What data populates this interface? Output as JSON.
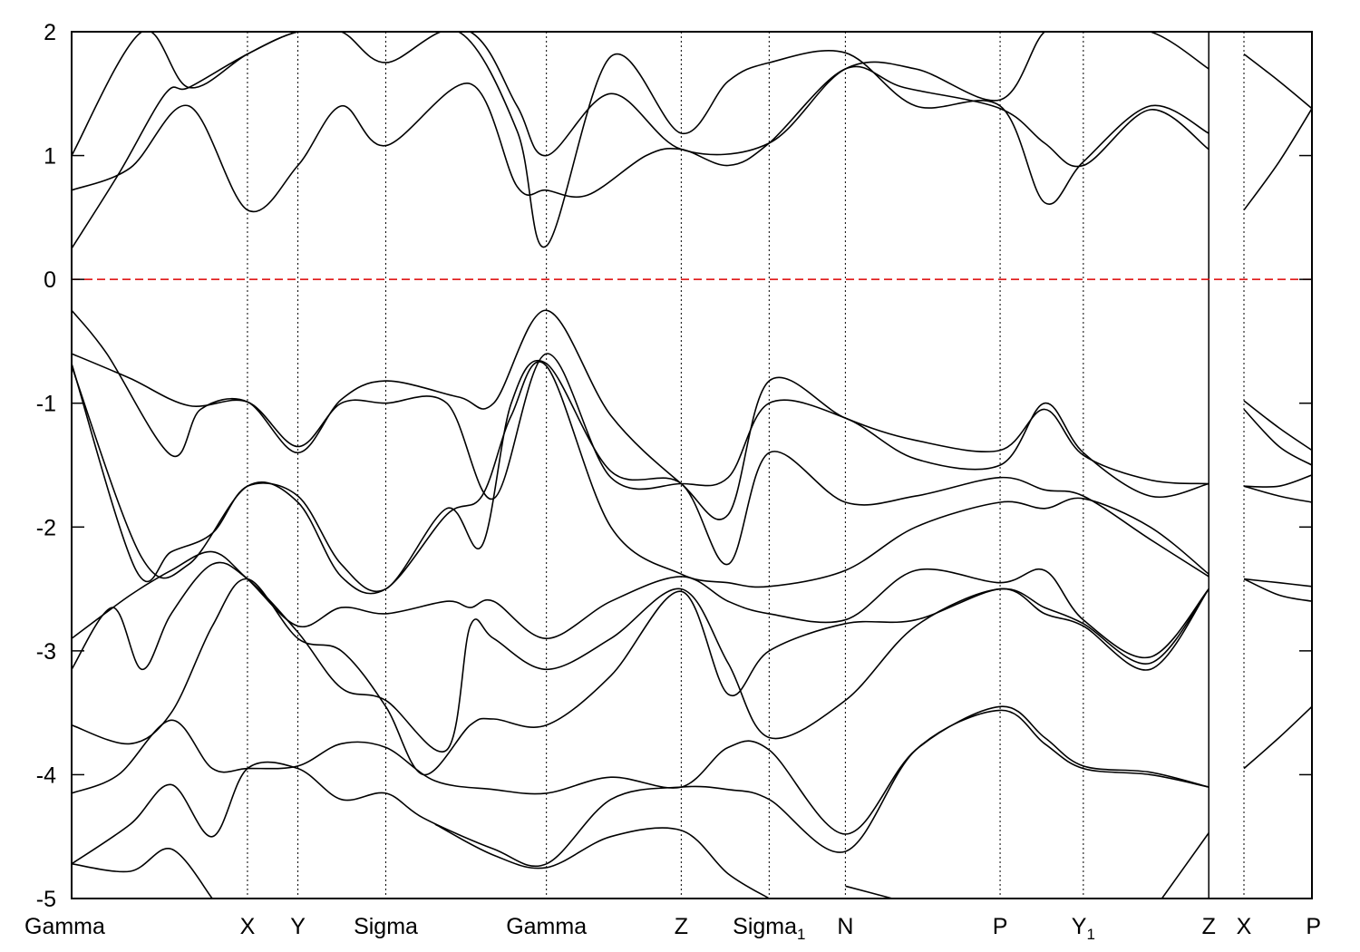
{
  "chart_data": {
    "type": "line",
    "title": "",
    "xlabel": "",
    "ylabel": "",
    "ylim": [
      -5,
      2
    ],
    "yticks": [
      -5,
      -4,
      -3,
      -2,
      -1,
      0,
      1,
      2
    ],
    "grid": "vertical dotted lines at high-symmetry points",
    "legend": "none",
    "fermi_level": {
      "y": 0,
      "color": "#dd0000",
      "style": "dashed"
    },
    "high_symmetry_points": [
      {
        "x": 0.0,
        "label": "Gamma",
        "sub": ""
      },
      {
        "x": 1.5,
        "label": "X",
        "sub": ""
      },
      {
        "x": 1.93,
        "label": "Y",
        "sub": ""
      },
      {
        "x": 2.68,
        "label": "Sigma",
        "sub": ""
      },
      {
        "x": 4.05,
        "label": "Gamma",
        "sub": ""
      },
      {
        "x": 5.2,
        "label": "Z",
        "sub": ""
      },
      {
        "x": 5.95,
        "label": "Sigma",
        "sub": "1"
      },
      {
        "x": 6.6,
        "label": "N",
        "sub": ""
      },
      {
        "x": 7.92,
        "label": "P",
        "sub": ""
      },
      {
        "x": 8.63,
        "label": "Y",
        "sub": "1"
      },
      {
        "x": 9.7,
        "label": "Z",
        "sub": ""
      },
      {
        "x": 10.0,
        "label": "X",
        "sub": ""
      },
      {
        "x": 10.58,
        "label": "P",
        "sub": ""
      }
    ],
    "xlim": [
      0,
      10.58
    ],
    "series": [
      {
        "name": "",
        "x": [
          0,
          0.4,
          0.8,
          1.0,
          1.5,
          1.93,
          2.3,
          2.68,
          3.4,
          3.8,
          4.05,
          4.6,
          5.2,
          5.95,
          6.6,
          7.2,
          7.92,
          8.3,
          8.63,
          9.2,
          9.7
        ],
        "values": [
          0.25,
          0.85,
          1.5,
          1.55,
          1.82,
          2.0,
          2.0,
          2.0,
          2.0,
          1.4,
          1.0,
          1.5,
          1.05,
          1.1,
          1.7,
          1.7,
          1.45,
          2.0,
          2.0,
          2.0,
          1.7
        ]
      },
      {
        "name": "",
        "x": [
          0,
          0.5,
          1.0,
          1.5,
          1.93,
          2.3,
          2.68,
          3.4,
          3.8,
          4.05,
          4.4,
          4.9,
          5.2,
          5.6,
          5.95,
          6.6,
          7.1,
          7.92,
          8.3,
          8.63,
          9.2,
          9.7
        ],
        "values": [
          0.72,
          0.9,
          1.4,
          0.56,
          0.92,
          1.4,
          1.08,
          1.58,
          0.75,
          0.72,
          0.68,
          1.0,
          1.05,
          0.92,
          1.1,
          1.7,
          1.55,
          1.38,
          1.1,
          0.92,
          1.37,
          1.05
        ]
      },
      {
        "name": "",
        "x": [
          0,
          0.6,
          1.0,
          1.5,
          1.93,
          2.3,
          2.68,
          3.3,
          3.8,
          4.05,
          4.6,
          5.2,
          5.6,
          5.95,
          6.6,
          7.2,
          7.92,
          8.3,
          8.63,
          9.2,
          9.7
        ],
        "values": [
          1.0,
          2.0,
          1.55,
          1.82,
          2.0,
          2.0,
          1.75,
          2.0,
          1.2,
          0.27,
          1.8,
          1.18,
          1.6,
          1.75,
          1.83,
          1.4,
          1.4,
          0.62,
          0.95,
          1.4,
          1.18
        ]
      },
      {
        "name": "",
        "x": [
          10.0,
          10.3,
          10.58
        ],
        "values": [
          1.82,
          1.6,
          1.38
        ]
      },
      {
        "name": "",
        "x": [
          10.0,
          10.3,
          10.58
        ],
        "values": [
          0.56,
          0.95,
          1.38
        ]
      },
      {
        "name": "",
        "x": [
          0,
          0.3,
          0.85,
          1.1,
          1.5,
          1.93,
          2.3,
          2.68,
          3.3,
          3.6,
          4.05,
          4.6,
          5.2,
          5.6,
          5.95,
          6.6,
          7.2,
          7.92,
          8.3,
          8.63,
          9.2,
          9.7
        ],
        "values": [
          -0.25,
          -0.6,
          -1.42,
          -1.05,
          -0.99,
          -1.4,
          -0.97,
          -0.82,
          -0.95,
          -1.0,
          -0.25,
          -1.1,
          -1.65,
          -1.9,
          -0.82,
          -1.12,
          -1.3,
          -1.38,
          -1.05,
          -1.42,
          -1.62,
          -1.65
        ]
      },
      {
        "name": "",
        "x": [
          0,
          0.5,
          1.0,
          1.5,
          1.93,
          2.3,
          2.68,
          3.2,
          3.6,
          4.05,
          4.6,
          5.2,
          5.6,
          5.95,
          6.6,
          7.2,
          7.92,
          8.3,
          8.63,
          9.2,
          9.7
        ],
        "values": [
          -0.6,
          -0.8,
          -1.02,
          -0.99,
          -1.35,
          -1.0,
          -1.0,
          -1.0,
          -1.77,
          -0.6,
          -1.6,
          -1.65,
          -1.6,
          -1.0,
          -1.12,
          -1.45,
          -1.5,
          -1.0,
          -1.4,
          -1.75,
          -1.65
        ]
      },
      {
        "name": "",
        "x": [
          0,
          0.55,
          0.85,
          1.2,
          1.5,
          1.93,
          2.3,
          2.68,
          3.2,
          3.5,
          3.75,
          4.05,
          4.6,
          5.2,
          5.6,
          5.95,
          6.6,
          7.2,
          7.92,
          8.3,
          8.63,
          9.2,
          9.7
        ],
        "values": [
          -0.68,
          -2.35,
          -2.2,
          -2.05,
          -1.67,
          -1.75,
          -2.3,
          -2.5,
          -1.85,
          -2.15,
          -1.0,
          -0.68,
          -1.55,
          -1.65,
          -2.3,
          -1.4,
          -1.8,
          -1.75,
          -1.6,
          -1.7,
          -1.75,
          -2.1,
          -2.4
        ]
      },
      {
        "name": "",
        "x": [
          0,
          0.6,
          1.0,
          1.5,
          1.93,
          2.3,
          2.68,
          3.2,
          3.5,
          3.75,
          4.05,
          4.6,
          5.2,
          5.6,
          5.95,
          6.6,
          7.2,
          7.92,
          8.3,
          8.63,
          9.2,
          9.7
        ],
        "values": [
          -0.7,
          -2.25,
          -2.3,
          -1.67,
          -1.8,
          -2.4,
          -2.5,
          -1.9,
          -1.75,
          -1.1,
          -0.7,
          -2.0,
          -2.38,
          -2.45,
          -2.48,
          -2.35,
          -2.0,
          -1.8,
          -1.85,
          -1.77,
          -2.0,
          -2.38
        ]
      },
      {
        "name": "",
        "x": [
          0,
          0.5,
          0.85,
          1.2,
          1.5,
          1.93,
          2.3,
          2.68,
          3.2,
          3.4,
          3.6,
          4.05,
          4.6,
          5.2,
          5.6,
          5.95,
          6.6,
          7.2,
          7.92,
          8.3,
          8.63,
          9.2,
          9.7
        ],
        "values": [
          -2.9,
          -2.55,
          -2.35,
          -2.2,
          -2.42,
          -2.8,
          -2.65,
          -2.7,
          -2.6,
          -2.65,
          -2.6,
          -2.9,
          -2.6,
          -2.4,
          -2.6,
          -2.7,
          -2.75,
          -2.35,
          -2.45,
          -2.35,
          -2.75,
          -3.05,
          -2.5
        ]
      },
      {
        "name": "",
        "x": [
          0,
          0.35,
          0.6,
          0.85,
          1.2,
          1.5,
          1.93,
          2.3,
          2.68,
          3.2,
          3.4,
          3.6,
          4.05,
          4.6,
          5.2,
          5.6,
          5.95,
          6.6,
          7.2,
          7.92,
          8.3,
          8.63,
          9.2,
          9.7
        ],
        "values": [
          -3.15,
          -2.65,
          -3.15,
          -2.7,
          -2.3,
          -2.42,
          -2.85,
          -3.3,
          -3.4,
          -3.8,
          -2.8,
          -2.9,
          -3.15,
          -2.9,
          -2.5,
          -3.1,
          -3.7,
          -3.4,
          -2.8,
          -2.5,
          -2.7,
          -2.8,
          -3.15,
          -2.5
        ]
      },
      {
        "name": "",
        "x": [
          0,
          0.5,
          0.85,
          1.2,
          1.5,
          1.93,
          2.3,
          2.68,
          3.0,
          3.4,
          3.6,
          4.05,
          4.6,
          5.2,
          5.6,
          5.95,
          6.6,
          7.2,
          7.92,
          8.3,
          8.63,
          9.2,
          9.7
        ],
        "values": [
          -3.6,
          -3.75,
          -3.5,
          -2.8,
          -2.42,
          -2.9,
          -3.0,
          -3.45,
          -4.0,
          -3.6,
          -3.55,
          -3.6,
          -3.2,
          -2.52,
          -3.35,
          -3.0,
          -2.78,
          -2.75,
          -2.5,
          -2.65,
          -2.78,
          -3.1,
          -2.5
        ]
      },
      {
        "name": "",
        "x": [
          0,
          0.4,
          0.85,
          1.2,
          1.5,
          1.93,
          2.3,
          2.68,
          3.1,
          3.6,
          4.05,
          4.6,
          5.2,
          5.6,
          5.95,
          6.6,
          7.2,
          7.92,
          8.3,
          8.63,
          9.2,
          9.7
        ],
        "values": [
          -4.15,
          -4.0,
          -3.56,
          -3.95,
          -3.95,
          -3.93,
          -3.75,
          -3.78,
          -4.05,
          -4.12,
          -4.15,
          -4.02,
          -4.1,
          -3.78,
          -3.8,
          -4.48,
          -3.8,
          -3.45,
          -3.7,
          -3.93,
          -3.98,
          -4.1
        ]
      },
      {
        "name": "",
        "x": [
          0,
          0.5,
          0.85,
          1.2,
          1.5,
          1.93,
          2.3,
          2.68,
          3.0,
          3.6,
          4.05,
          4.6,
          5.2,
          5.6,
          5.95,
          6.6,
          7.2,
          7.92,
          8.3,
          8.63,
          9.2,
          9.7
        ],
        "values": [
          -4.72,
          -4.4,
          -4.08,
          -4.5,
          -3.95,
          -3.95,
          -4.2,
          -4.15,
          -4.35,
          -4.6,
          -4.72,
          -4.2,
          -4.1,
          -4.12,
          -4.2,
          -4.62,
          -3.8,
          -3.48,
          -3.75,
          -3.95,
          -4.0,
          -4.1
        ]
      },
      {
        "name": "",
        "x": [
          0,
          0.5,
          0.85,
          1.2
        ],
        "values": [
          -4.72,
          -4.78,
          -4.6,
          -5.0
        ]
      },
      {
        "name": "",
        "x": [
          3.1,
          3.6,
          4.05,
          4.6,
          5.2,
          5.6,
          5.95
        ],
        "values": [
          -4.4,
          -4.65,
          -4.75,
          -4.5,
          -4.45,
          -4.8,
          -5.0
        ]
      },
      {
        "name": "",
        "x": [
          6.6,
          7.0
        ],
        "values": [
          -4.9,
          -5.0
        ]
      },
      {
        "name": "",
        "x": [
          9.3,
          9.7
        ],
        "values": [
          -5.0,
          -4.47
        ]
      },
      {
        "name": "",
        "x": [
          10.0,
          10.3,
          10.58
        ],
        "values": [
          -0.98,
          -1.2,
          -1.38
        ]
      },
      {
        "name": "",
        "x": [
          10.0,
          10.3,
          10.58
        ],
        "values": [
          -1.05,
          -1.35,
          -1.5
        ]
      },
      {
        "name": "",
        "x": [
          10.0,
          10.3,
          10.58
        ],
        "values": [
          -1.67,
          -1.67,
          -1.58
        ]
      },
      {
        "name": "",
        "x": [
          10.0,
          10.3,
          10.58
        ],
        "values": [
          -1.67,
          -1.75,
          -1.8
        ]
      },
      {
        "name": "",
        "x": [
          10.0,
          10.3,
          10.58
        ],
        "values": [
          -2.42,
          -2.45,
          -2.48
        ]
      },
      {
        "name": "",
        "x": [
          10.0,
          10.3,
          10.58
        ],
        "values": [
          -2.42,
          -2.55,
          -2.6
        ]
      },
      {
        "name": "",
        "x": [
          10.0,
          10.3,
          10.58
        ],
        "values": [
          -3.95,
          -3.7,
          -3.45
        ]
      }
    ]
  }
}
